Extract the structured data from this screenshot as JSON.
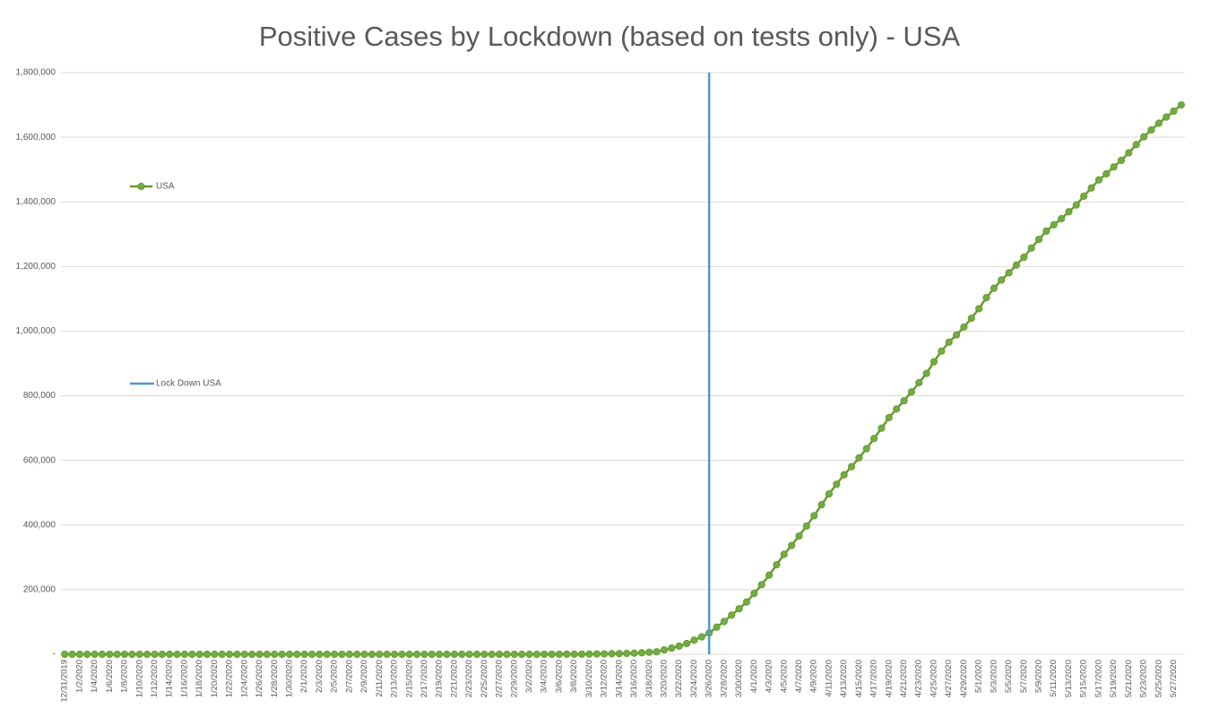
{
  "chart_data": {
    "type": "line",
    "title": "Positive Cases by Lockdown (based on tests only) - USA",
    "categories": [
      "12/31/2019",
      null,
      "1/2/2020",
      null,
      "1/4/2020",
      null,
      "1/6/2020",
      null,
      "1/8/2020",
      null,
      "1/10/2020",
      null,
      "1/12/2020",
      null,
      "1/14/2020",
      null,
      "1/16/2020",
      null,
      "1/18/2020",
      null,
      "1/20/2020",
      null,
      "1/22/2020",
      null,
      "1/24/2020",
      null,
      "1/26/2020",
      null,
      "1/28/2020",
      null,
      "1/30/2020",
      null,
      "2/1/2020",
      null,
      "2/3/2020",
      null,
      "2/5/2020",
      null,
      "2/7/2020",
      null,
      "2/9/2020",
      null,
      "2/11/2020",
      null,
      "2/13/2020",
      null,
      "2/15/2020",
      null,
      "2/17/2020",
      null,
      "2/19/2020",
      null,
      "2/21/2020",
      null,
      "2/23/2020",
      null,
      "2/25/2020",
      null,
      "2/27/2020",
      null,
      "2/29/2020",
      null,
      "3/2/2020",
      null,
      "3/4/2020",
      null,
      "3/6/2020",
      null,
      "3/8/2020",
      null,
      "3/10/2020",
      null,
      "3/12/2020",
      null,
      "3/14/2020",
      null,
      "3/16/2020",
      null,
      "3/18/2020",
      null,
      "3/20/2020",
      null,
      "3/22/2020",
      null,
      "3/24/2020",
      null,
      "3/26/2020",
      null,
      "3/28/2020",
      null,
      "3/30/2020",
      null,
      "4/1/2020",
      null,
      "4/3/2020",
      null,
      "4/5/2020",
      null,
      "4/7/2020",
      null,
      "4/9/2020",
      null,
      "4/11/2020",
      null,
      "4/13/2020",
      null,
      "4/15/2020",
      null,
      "4/17/2020",
      null,
      "4/19/2020",
      null,
      "4/21/2020",
      null,
      "4/23/2020",
      null,
      "4/25/2020",
      null,
      "4/27/2020",
      null,
      "4/29/2020",
      null,
      "5/1/2020",
      null,
      "5/3/2020",
      null,
      "5/5/2020",
      null,
      "5/7/2020",
      null,
      "5/9/2020",
      null,
      "5/11/2020",
      null,
      "5/13/2020",
      null,
      "5/15/2020",
      null,
      "5/17/2020",
      null,
      "5/19/2020",
      null,
      "5/21/2020",
      null,
      "5/23/2020",
      null,
      "5/25/2020",
      null,
      "5/27/2020",
      null
    ],
    "series": [
      {
        "name": "USA",
        "color": "#6a9a2e",
        "values": [
          0,
          0,
          0,
          0,
          0,
          0,
          0,
          0,
          0,
          0,
          0,
          0,
          0,
          0,
          0,
          0,
          0,
          0,
          0,
          0,
          0,
          0,
          1,
          1,
          1,
          2,
          2,
          5,
          5,
          5,
          5,
          5,
          6,
          8,
          8,
          11,
          11,
          11,
          12,
          12,
          12,
          12,
          12,
          13,
          13,
          14,
          14,
          14,
          14,
          14,
          14,
          14,
          14,
          35,
          35,
          35,
          53,
          53,
          59,
          60,
          62,
          68,
          76,
          101,
          122,
          153,
          221,
          278,
          417,
          537,
          605,
          959,
          1281,
          1663,
          2179,
          2726,
          3499,
          4632,
          6421,
          7786,
          13680,
          19101,
          25493,
          33276,
          43847,
          53740,
          65778,
          83836,
          101657,
          121465,
          140909,
          161831,
          188172,
          215215,
          244678,
          276965,
          309445,
          336802,
          366317,
          397121,
          428654,
          462780,
          496535,
          526396,
          555313,
          580619,
          607670,
          636350,
          667801,
          699706,
          732197,
          759086,
          784326,
          811865,
          840351,
          869170,
          905358,
          938154,
          965785,
          988197,
          1012582,
          1039909,
          1069424,
          1103461,
          1132539,
          1158040,
          1180375,
          1204351,
          1228603,
          1257023,
          1283929,
          1309550,
          1329260,
          1347881,
          1369376,
          1390406,
          1417774,
          1442824,
          1467820,
          1486757,
          1508308,
          1528568,
          1551853,
          1577147,
          1600937,
          1622612,
          1643246,
          1662302,
          1680913,
          1699933
        ]
      }
    ],
    "vlines": [
      {
        "name": "Lock Down USA",
        "color": "#4e97cf",
        "x": "3/26/2020"
      }
    ],
    "ylim": [
      0,
      1800000
    ],
    "yticks": [
      {
        "value": 0,
        "label": "-"
      },
      {
        "value": 200000,
        "label": "200,000"
      },
      {
        "value": 400000,
        "label": "400,000"
      },
      {
        "value": 600000,
        "label": "600,000"
      },
      {
        "value": 800000,
        "label": "800,000"
      },
      {
        "value": 1000000,
        "label": "1,000,000"
      },
      {
        "value": 1200000,
        "label": "1,200,000"
      },
      {
        "value": 1400000,
        "label": "1,400,000"
      },
      {
        "value": 1600000,
        "label": "1,600,000"
      },
      {
        "value": 1800000,
        "label": "1,800,000"
      }
    ],
    "grid": true,
    "legend": "left"
  }
}
